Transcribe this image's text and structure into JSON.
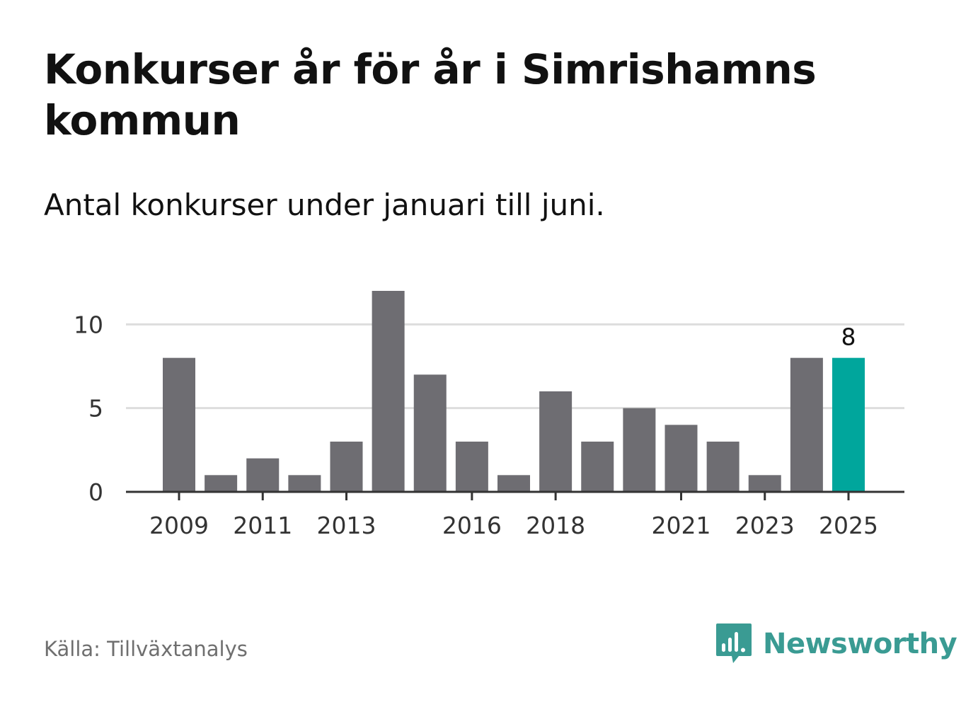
{
  "header": {
    "title": "Konkurser år för år i Simrishamns kommun",
    "subtitle": "Antal konkurser under januari till juni."
  },
  "footer": {
    "source": "Källa: Tillväxtanalys",
    "brand": "Newsworthy",
    "brand_icon": "bar-chart-speech-bubble-icon"
  },
  "colors": {
    "bar": "#6e6d72",
    "highlight": "#00a69c",
    "grid": "#dddddd",
    "axis": "#333333",
    "brand": "#3a9b93"
  },
  "chart_data": {
    "type": "bar",
    "categories": [
      "2009",
      "2010",
      "2011",
      "2012",
      "2013",
      "2014",
      "2015",
      "2016",
      "2017",
      "2018",
      "2019",
      "2020",
      "2021",
      "2022",
      "2023",
      "2024",
      "2025"
    ],
    "values": [
      8,
      1,
      2,
      1,
      3,
      12,
      7,
      3,
      1,
      6,
      3,
      5,
      4,
      3,
      1,
      8,
      8
    ],
    "x_tick_labels": [
      "2009",
      "2011",
      "2013",
      "2016",
      "2018",
      "2021",
      "2023",
      "2025"
    ],
    "y_ticks": [
      0,
      5,
      10
    ],
    "ylim": [
      0,
      12
    ],
    "highlight_category": "2025",
    "data_labels": [
      {
        "category": "2025",
        "text": "8"
      }
    ],
    "title": "",
    "xlabel": "",
    "ylabel": "",
    "grid": "horizontal",
    "legend": "none"
  }
}
